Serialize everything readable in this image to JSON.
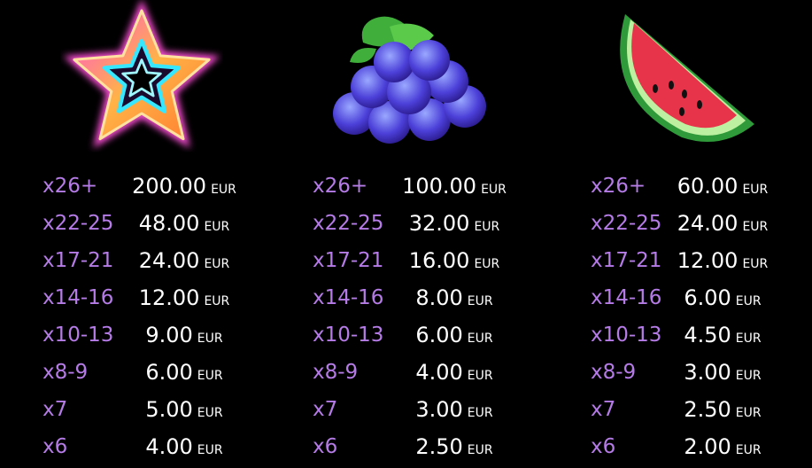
{
  "symbols": [
    {
      "rows": [
        {
          "count": "x26+",
          "amount": "200.00",
          "unit": "EUR"
        },
        {
          "count": "x22-25",
          "amount": "48.00",
          "unit": "EUR"
        },
        {
          "count": "x17-21",
          "amount": "24.00",
          "unit": "EUR"
        },
        {
          "count": "x14-16",
          "amount": "12.00",
          "unit": "EUR"
        },
        {
          "count": "x10-13",
          "amount": "9.00",
          "unit": "EUR"
        },
        {
          "count": "x8-9",
          "amount": "6.00",
          "unit": "EUR"
        },
        {
          "count": "x7",
          "amount": "5.00",
          "unit": "EUR"
        },
        {
          "count": "x6",
          "amount": "4.00",
          "unit": "EUR"
        }
      ]
    },
    {
      "rows": [
        {
          "count": "x26+",
          "amount": "100.00",
          "unit": "EUR"
        },
        {
          "count": "x22-25",
          "amount": "32.00",
          "unit": "EUR"
        },
        {
          "count": "x17-21",
          "amount": "16.00",
          "unit": "EUR"
        },
        {
          "count": "x14-16",
          "amount": "8.00",
          "unit": "EUR"
        },
        {
          "count": "x10-13",
          "amount": "6.00",
          "unit": "EUR"
        },
        {
          "count": "x8-9",
          "amount": "4.00",
          "unit": "EUR"
        },
        {
          "count": "x7",
          "amount": "3.00",
          "unit": "EUR"
        },
        {
          "count": "x6",
          "amount": "2.50",
          "unit": "EUR"
        }
      ]
    },
    {
      "rows": [
        {
          "count": "x26+",
          "amount": "60.00",
          "unit": "EUR"
        },
        {
          "count": "x22-25",
          "amount": "24.00",
          "unit": "EUR"
        },
        {
          "count": "x17-21",
          "amount": "12.00",
          "unit": "EUR"
        },
        {
          "count": "x14-16",
          "amount": "6.00",
          "unit": "EUR"
        },
        {
          "count": "x10-13",
          "amount": "4.50",
          "unit": "EUR"
        },
        {
          "count": "x8-9",
          "amount": "3.00",
          "unit": "EUR"
        },
        {
          "count": "x7",
          "amount": "2.50",
          "unit": "EUR"
        },
        {
          "count": "x6",
          "amount": "2.00",
          "unit": "EUR"
        }
      ]
    }
  ]
}
